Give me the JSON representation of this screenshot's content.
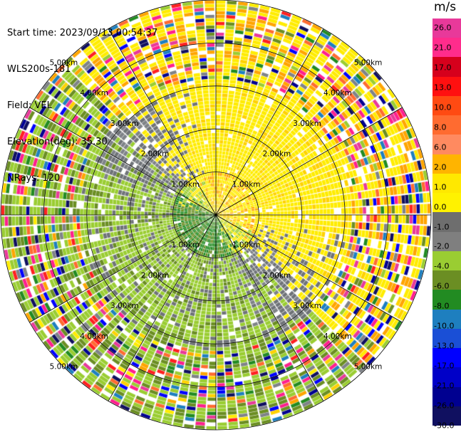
{
  "info": {
    "start_time": "Start time: 2023/09/13 00:54:37",
    "instrument": "WLS200s-181",
    "field": "Field: VEL",
    "elevation": "Elevation(deg): 35.30",
    "nrays": "NRays: 120"
  },
  "colorbar": {
    "unit": "m/s",
    "ticks": [
      "26.0",
      "21.0",
      "17.0",
      "13.0",
      "10.0",
      "8.0",
      "6.0",
      "2.0",
      "1.0",
      "0.0",
      "-1.0",
      "-2.0",
      "-4.0",
      "-6.0",
      "-8.0",
      "-10.0",
      "-13.0",
      "-17.0",
      "-21.0",
      "-26.0",
      "-30.0"
    ],
    "colors": [
      "#e8399a",
      "#ff2c8c",
      "#d6001c",
      "#ff1010",
      "#ff4a12",
      "#ff6b30",
      "#ff8a60",
      "#ffb400",
      "#ffe800",
      "#fff200",
      "#6e6e6e",
      "#7f7f7f",
      "#9acd32",
      "#6b8e23",
      "#228b22",
      "#1e7fbf",
      "#1a4fd6",
      "#0000ff",
      "#0000c8",
      "#000090",
      "#101060"
    ]
  },
  "chart_data": {
    "type": "heatmap",
    "title": "",
    "field": "VEL",
    "units": "m/s",
    "elevation_deg": 35.3,
    "nrays": 120,
    "range_rings_km": [
      1.0,
      2.0,
      3.0,
      4.0,
      5.0
    ],
    "ring_labels": [
      "1.00km",
      "2.00km",
      "3.00km",
      "4.00km",
      "5.00km"
    ],
    "max_range_km": 5.0,
    "color_levels": [
      -30.0,
      -26.0,
      -21.0,
      -17.0,
      -13.0,
      -10.0,
      -8.0,
      -6.0,
      -4.0,
      -2.0,
      -1.0,
      0.0,
      1.0,
      2.0,
      6.0,
      8.0,
      10.0,
      13.0,
      17.0,
      21.0,
      26.0
    ],
    "pattern": "positive (yellow/orange) radial velocities to the north and east, negative (green/grey) to the south and west, noisy multicolored values beyond ~3 km"
  }
}
